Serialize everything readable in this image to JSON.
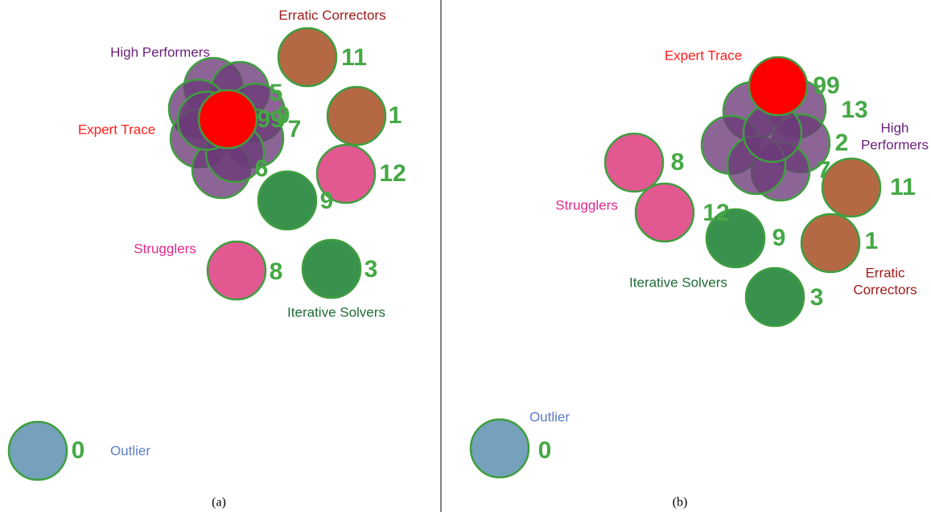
{
  "panels": [
    {
      "caption": "(a)",
      "groups": [
        {
          "lines": [
            "Erratic Correctors"
          ]
        },
        {
          "lines": [
            "High Performers"
          ]
        },
        {
          "lines": [
            "Expert Trace"
          ]
        },
        {
          "lines": [
            "Strugglers"
          ]
        },
        {
          "lines": [
            "Iterative Solvers"
          ]
        },
        {
          "lines": [
            "Outlier"
          ]
        }
      ],
      "node_ids": [
        "11",
        "1",
        "12",
        "9",
        "8",
        "3",
        "0",
        "5",
        "9",
        "99",
        "7",
        "6"
      ]
    },
    {
      "caption": "(b)",
      "groups": [
        {
          "lines": [
            "Expert Trace"
          ]
        },
        {
          "lines": [
            "High",
            "Performers"
          ]
        },
        {
          "lines": [
            "Erratic",
            "Correctors"
          ]
        },
        {
          "lines": [
            "Strugglers"
          ]
        },
        {
          "lines": [
            "Iterative Solvers"
          ]
        },
        {
          "lines": [
            "Outlier"
          ]
        }
      ],
      "node_ids": [
        "99",
        "13",
        "2",
        "7",
        "11",
        "1",
        "8",
        "12",
        "9",
        "3",
        "0"
      ]
    }
  ]
}
